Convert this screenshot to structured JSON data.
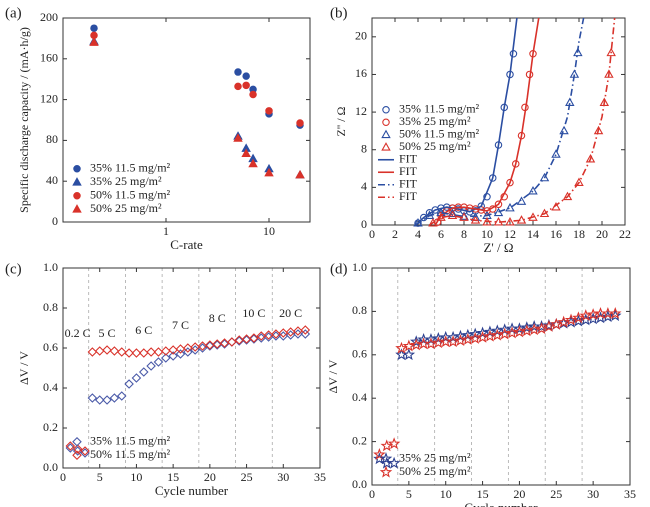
{
  "chart_data": [
    {
      "type": "scatter",
      "panel_label": "(a)",
      "xlabel": "C-rate",
      "ylabel": "Specific discharge capacity / (mA·h/g)",
      "xscale": "log",
      "xlim": [
        0.1,
        25
      ],
      "xticks": [
        1,
        10
      ],
      "ylim": [
        0,
        200
      ],
      "yticks": [
        0,
        40,
        80,
        120,
        160,
        200
      ],
      "grid": false,
      "legend": "lower left",
      "marker_fill": "filled",
      "series": [
        {
          "name": "35%  11.5 mg/m²",
          "color": "#2b4ea2",
          "marker": "circle",
          "x": [
            0.2,
            5,
            6,
            7,
            10,
            20
          ],
          "values": [
            190,
            147,
            143,
            130,
            106,
            95
          ]
        },
        {
          "name": "35%  25 mg/m²",
          "color": "#2b4ea2",
          "marker": "triangle",
          "x": [
            0.2,
            5,
            6,
            7,
            10,
            20
          ],
          "values": [
            177,
            84,
            72,
            62,
            52,
            46
          ]
        },
        {
          "name": "50%  11.5 mg/m²",
          "color": "#d9322a",
          "marker": "circle",
          "x": [
            0.2,
            5,
            6,
            7,
            10,
            20
          ],
          "values": [
            183,
            133,
            134,
            125,
            109,
            97
          ]
        },
        {
          "name": "50%  25 mg/m²",
          "color": "#d9322a",
          "marker": "triangle",
          "x": [
            0.2,
            5,
            6,
            7,
            10,
            20
          ],
          "values": [
            176,
            82,
            67,
            57,
            48,
            46
          ]
        }
      ]
    },
    {
      "type": "scatter",
      "panel_label": "(b)",
      "xlabel": "Z' / Ω",
      "ylabel": "Z'' / Ω",
      "xscale": "linear",
      "xlim": [
        0,
        22
      ],
      "xticks": [
        0,
        2,
        4,
        6,
        8,
        10,
        12,
        14,
        16,
        18,
        20,
        22
      ],
      "ylim": [
        0,
        22
      ],
      "yticks": [
        0,
        4,
        8,
        12,
        16,
        20
      ],
      "grid": false,
      "legend": "center left",
      "marker_fill": "hollow",
      "series": [
        {
          "name": "35%  11.5 mg/m²",
          "color": "#2b4ea2",
          "marker": "circle",
          "x": [
            4,
            4.5,
            5,
            5.5,
            6,
            6.5,
            7,
            7.5,
            8,
            8.5,
            9,
            9.5,
            10,
            10.5,
            11,
            11.5,
            12,
            12.3
          ],
          "values": [
            0.2,
            0.8,
            1.3,
            1.6,
            1.8,
            1.9,
            1.8,
            1.7,
            1.5,
            1.4,
            1.5,
            2,
            3,
            5,
            8.5,
            12.5,
            16,
            18.2
          ]
        },
        {
          "name": "35%  25 mg/m²",
          "color": "#d9322a",
          "marker": "circle",
          "x": [
            5.7,
            6,
            6.5,
            7,
            7.5,
            8,
            8.5,
            9,
            9.5,
            10,
            10.5,
            11,
            11.5,
            12,
            12.5,
            13,
            13.3,
            13.7,
            14
          ],
          "values": [
            0.3,
            1,
            1.5,
            1.8,
            1.9,
            1.9,
            1.8,
            1.7,
            1.6,
            1.5,
            1.7,
            2.2,
            3,
            4.5,
            6.5,
            9.5,
            12.5,
            16,
            18.2
          ]
        },
        {
          "name": "50%  11.5 mg/m²",
          "color": "#2b4ea2",
          "marker": "triangle",
          "x": [
            4,
            5,
            6,
            7,
            8,
            9,
            10,
            11,
            12,
            13,
            14,
            15,
            16,
            16.7,
            17.2,
            17.6,
            17.9
          ],
          "values": [
            0.2,
            1,
            1.3,
            1.2,
            0.9,
            0.8,
            1,
            1.3,
            1.8,
            2.5,
            3.6,
            5,
            7.5,
            10,
            13,
            16,
            18.3
          ]
        },
        {
          "name": "50%  25 mg/m²",
          "color": "#d9322a",
          "marker": "triangle",
          "x": [
            5.3,
            6,
            7,
            8,
            9,
            10,
            11,
            12,
            13,
            14,
            15,
            16,
            17,
            18,
            19,
            19.7,
            20.2,
            20.6,
            20.8
          ],
          "values": [
            0.2,
            0.8,
            1,
            0.8,
            0.5,
            0.3,
            0.3,
            0.3,
            0.5,
            0.8,
            1.2,
            1.9,
            3,
            4.5,
            7,
            10,
            13,
            16,
            18.3
          ]
        },
        {
          "name": "FIT",
          "color": "#2b4ea2",
          "style": "solid",
          "x": [
            3.8,
            4.5,
            5.5,
            6.5,
            7.5,
            8.5,
            9.5,
            10.5,
            11,
            11.5,
            12,
            12.6
          ],
          "values": [
            0,
            0.8,
            1.6,
            1.9,
            1.7,
            1.4,
            2,
            5,
            8.5,
            12.5,
            16,
            22
          ]
        },
        {
          "name": "FIT",
          "color": "#d9322a",
          "style": "solid",
          "x": [
            5.5,
            6,
            7,
            8,
            9,
            10,
            11,
            12,
            12.5,
            13,
            13.5,
            14,
            14.5
          ],
          "values": [
            0,
            1,
            1.8,
            1.9,
            1.7,
            1.5,
            2.2,
            4.5,
            6.5,
            9.5,
            13.5,
            18.2,
            22
          ]
        },
        {
          "name": "FIT",
          "color": "#2b4ea2",
          "style": "dashdot",
          "x": [
            3.8,
            5,
            6,
            8,
            10,
            12,
            14,
            15,
            16,
            17,
            17.6,
            18,
            18.4
          ],
          "values": [
            0,
            1,
            1.3,
            0.9,
            1,
            1.8,
            3.6,
            5,
            7.5,
            11.5,
            16,
            19.5,
            22
          ]
        },
        {
          "name": "FIT",
          "color": "#d9322a",
          "style": "dashdot",
          "x": [
            5,
            6,
            7,
            9,
            11,
            13,
            15,
            17,
            18,
            19,
            20,
            20.6,
            21.1
          ],
          "values": [
            0,
            0.8,
            1,
            0.5,
            0.3,
            0.5,
            1.2,
            3,
            4.5,
            7,
            11.5,
            16,
            22
          ]
        }
      ]
    },
    {
      "type": "scatter",
      "panel_label": "(c)",
      "xlabel": "Cycle number",
      "ylabel": "ΔV / V",
      "xscale": "linear",
      "xlim": [
        0,
        35
      ],
      "xticks": [
        0,
        5,
        10,
        15,
        20,
        25,
        30,
        35
      ],
      "ylim": [
        0,
        1
      ],
      "yticks": [
        {
          "value": 0,
          "label": "0.0"
        },
        0.2,
        0.4,
        0.6,
        0.8,
        {
          "value": 1,
          "label": "1.0"
        }
      ],
      "grid": false,
      "legend": "lower left",
      "marker_fill": "hollow",
      "vlines": [
        3.5,
        8.5,
        13.5,
        18.5,
        23.5,
        28.5
      ],
      "rate_labels": [
        "0.2 C",
        "5 C",
        "6 C",
        "7 C",
        "8 C",
        "10 C",
        "20 C"
      ],
      "x": [
        1,
        2,
        3,
        4,
        5,
        6,
        7,
        8,
        9,
        10,
        11,
        12,
        13,
        14,
        15,
        16,
        17,
        18,
        19,
        20,
        21,
        22,
        23,
        24,
        25,
        26,
        27,
        28,
        29,
        30,
        31,
        32,
        33
      ],
      "series": [
        {
          "name": "35%  11.5 mg/m²",
          "color": "#4a5aa8",
          "marker": "diamond",
          "values": [
            0.1,
            0.085,
            0.075,
            0.35,
            0.34,
            0.34,
            0.35,
            0.36,
            0.42,
            0.45,
            0.48,
            0.51,
            0.53,
            0.55,
            0.56,
            0.57,
            0.58,
            0.59,
            0.6,
            0.61,
            0.615,
            0.62,
            0.63,
            0.635,
            0.64,
            0.645,
            0.65,
            0.655,
            0.66,
            0.66,
            0.665,
            0.67,
            0.67
          ]
        },
        {
          "name": "50%  11.5 mg/m²",
          "color": "#d9322a",
          "marker": "diamond",
          "values": [
            0.11,
            0.095,
            0.085,
            0.58,
            0.585,
            0.59,
            0.585,
            0.58,
            0.575,
            0.575,
            0.575,
            0.58,
            0.58,
            0.585,
            0.59,
            0.595,
            0.6,
            0.605,
            0.61,
            0.615,
            0.62,
            0.625,
            0.63,
            0.64,
            0.645,
            0.65,
            0.66,
            0.665,
            0.67,
            0.675,
            0.68,
            0.685,
            0.69
          ]
        }
      ]
    },
    {
      "type": "scatter",
      "panel_label": "(d)",
      "xlabel": "Cycle number",
      "ylabel": "ΔV / V",
      "xscale": "linear",
      "xlim": [
        0,
        35
      ],
      "xticks": [
        0,
        5,
        10,
        15,
        20,
        25,
        30,
        35
      ],
      "ylim": [
        0,
        1
      ],
      "yticks": [
        {
          "value": 0,
          "label": "0.0"
        },
        0.2,
        0.4,
        0.6,
        0.8,
        {
          "value": 1,
          "label": "1.0"
        }
      ],
      "grid": false,
      "legend": "lower left",
      "marker_fill": "hollow",
      "vlines": [
        3.5,
        8.5,
        13.5,
        18.5,
        23.5,
        28.5
      ],
      "x": [
        1,
        2,
        3,
        4,
        5,
        6,
        7,
        8,
        9,
        10,
        11,
        12,
        13,
        14,
        15,
        16,
        17,
        18,
        19,
        20,
        21,
        22,
        23,
        24,
        25,
        26,
        27,
        28,
        29,
        30,
        31,
        32,
        33
      ],
      "series": [
        {
          "name": "35%  25 mg/m²",
          "color": "#2b3f8f",
          "marker": "star",
          "values": [
            0.12,
            0.1,
            0.1,
            0.6,
            0.6,
            0.66,
            0.67,
            0.67,
            0.675,
            0.68,
            0.68,
            0.685,
            0.69,
            0.695,
            0.7,
            0.705,
            0.71,
            0.715,
            0.72,
            0.72,
            0.725,
            0.73,
            0.73,
            0.735,
            0.74,
            0.745,
            0.75,
            0.755,
            0.76,
            0.765,
            0.77,
            0.775,
            0.78
          ]
        },
        {
          "name": "50%  25 mg/m²",
          "color": "#d9322a",
          "marker": "star",
          "values": [
            0.14,
            0.18,
            0.19,
            0.63,
            0.64,
            0.645,
            0.65,
            0.65,
            0.655,
            0.66,
            0.66,
            0.665,
            0.67,
            0.675,
            0.68,
            0.685,
            0.69,
            0.695,
            0.7,
            0.705,
            0.71,
            0.715,
            0.72,
            0.73,
            0.74,
            0.75,
            0.76,
            0.77,
            0.78,
            0.785,
            0.79,
            0.79,
            0.79
          ]
        }
      ]
    }
  ]
}
